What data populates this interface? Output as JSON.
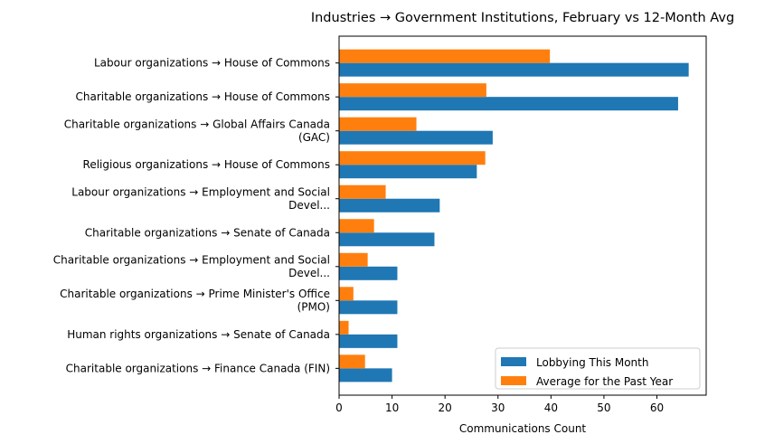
{
  "chart_data": {
    "type": "bar",
    "orientation": "horizontal",
    "title": "Industries → Government Institutions, February vs 12-Month Avg",
    "xlabel": "Communications Count",
    "ylabel": "",
    "xlim": [
      0,
      69.3
    ],
    "xticks": [
      0,
      10,
      20,
      30,
      40,
      50,
      60
    ],
    "grid": false,
    "legend_placement": "lower-right",
    "categories": [
      [
        "Labour organizations → House of Commons"
      ],
      [
        "Charitable organizations → House of Commons"
      ],
      [
        "Charitable organizations → Global Affairs Canada",
        "(GAC)"
      ],
      [
        "Religious organizations → House of Commons"
      ],
      [
        "Labour organizations → Employment and Social",
        "Devel..."
      ],
      [
        "Charitable organizations → Senate of Canada"
      ],
      [
        "Charitable organizations → Employment and Social",
        "Devel..."
      ],
      [
        "Charitable organizations → Prime Minister's Office",
        "(PMO)"
      ],
      [
        "Human rights organizations → Senate of Canada"
      ],
      [
        "Charitable organizations → Finance Canada (FIN)"
      ]
    ],
    "series": [
      {
        "name": "Lobbying This Month",
        "color": "#1f77b4",
        "values": [
          66,
          64,
          29,
          26,
          19,
          18,
          11,
          11,
          11,
          10
        ]
      },
      {
        "name": "Average for the Past Year",
        "color": "#ff7f0e",
        "values": [
          39.8,
          27.8,
          14.6,
          27.6,
          8.8,
          6.6,
          5.4,
          2.7,
          1.8,
          4.9
        ]
      }
    ]
  }
}
